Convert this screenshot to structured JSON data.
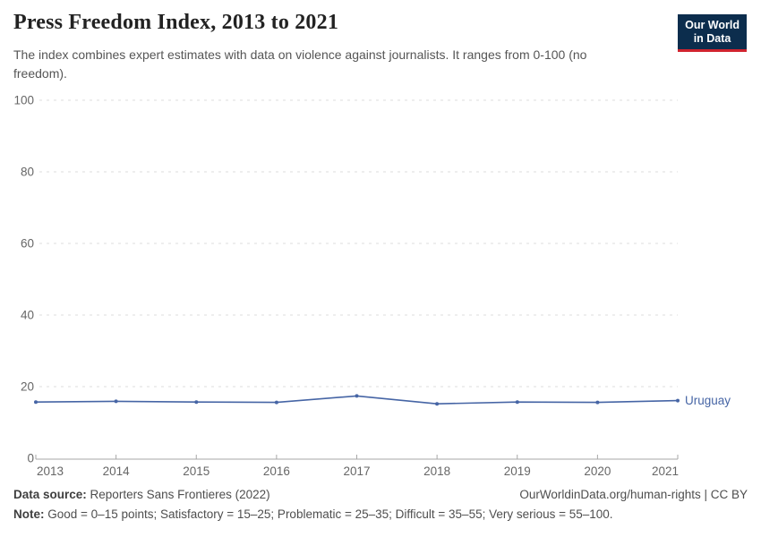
{
  "header": {
    "title": "Press Freedom Index, 2013 to 2021",
    "subtitle": "The index combines expert estimates with data on violence against journalists. It ranges from 0-100 (no freedom).",
    "logo": {
      "line1": "Our World",
      "line2": "in Data",
      "bg": "#0c2d4d",
      "accent": "#d0232e"
    }
  },
  "chart_data": {
    "type": "line",
    "title": "Press Freedom Index, 2013 to 2021",
    "x": [
      2013,
      2014,
      2015,
      2016,
      2017,
      2018,
      2019,
      2020,
      2021
    ],
    "xticks": [
      2013,
      2014,
      2015,
      2016,
      2017,
      2018,
      2019,
      2020,
      2021
    ],
    "series": [
      {
        "name": "Uruguay",
        "color": "#4665a5",
        "values": [
          15.7,
          15.9,
          15.7,
          15.6,
          17.4,
          15.2,
          15.7,
          15.6,
          16.1
        ]
      }
    ],
    "xlabel": "",
    "ylabel": "",
    "ylim": [
      0,
      100
    ],
    "yticks": [
      0,
      20,
      40,
      60,
      80,
      100
    ],
    "grid": "horizontal-dashed",
    "legend": "line-end-label"
  },
  "colors": {
    "grid": "#dcdcdc",
    "axis": "#a7a7a7",
    "tick_label": "#666666"
  },
  "footer": {
    "datasource_label": "Data source:",
    "datasource": "Reporters Sans Frontieres (2022)",
    "link": "OurWorldinData.org/human-rights | CC BY",
    "note_label": "Note:",
    "note": "Good = 0–15 points; Satisfactory = 15–25; Problematic = 25–35; Difficult = 35–55; Very serious = 55–100."
  }
}
